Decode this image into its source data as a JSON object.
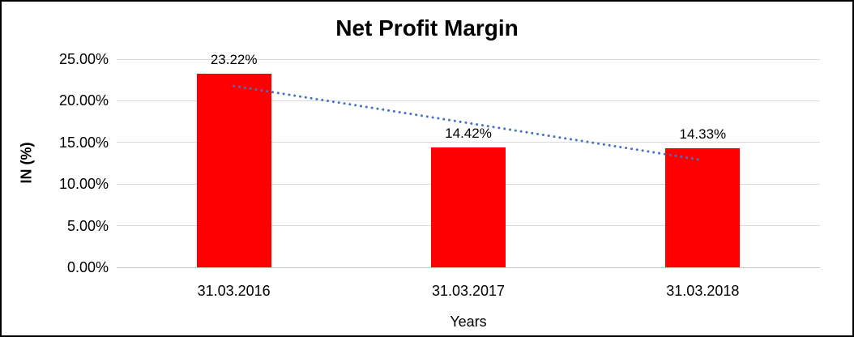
{
  "chart": {
    "title": "Net Profit Margin",
    "x_axis_title": "Years",
    "y_axis_title": "IN (%)"
  },
  "chart_data": {
    "type": "bar",
    "title": "Net Profit Margin",
    "xlabel": "Years",
    "ylabel": "IN (%)",
    "categories": [
      "31.03.2016",
      "31.03.2017",
      "31.03.2018"
    ],
    "values": [
      23.22,
      14.42,
      14.33
    ],
    "data_labels": [
      "23.22%",
      "14.42%",
      "14.33%"
    ],
    "y_ticks": [
      {
        "value": 25,
        "label": "25.00%"
      },
      {
        "value": 20,
        "label": "20.00%"
      },
      {
        "value": 15,
        "label": "15.00%"
      },
      {
        "value": 10,
        "label": "10.00%"
      },
      {
        "value": 5,
        "label": "5.00%"
      },
      {
        "value": 0,
        "label": "0.00%"
      }
    ],
    "ylim": [
      0,
      25
    ],
    "grid": true,
    "legend": "none",
    "trendline": {
      "type": "linear",
      "style": "dotted",
      "start_value": 21.77,
      "end_value": 12.88
    }
  },
  "colors": {
    "bar": "#ff0000",
    "trendline": "#4472c4",
    "gridline": "#d9d9d9",
    "axis_line": "#c8c8c8",
    "text": "#000000",
    "border": "#000000",
    "background": "#ffffff"
  }
}
